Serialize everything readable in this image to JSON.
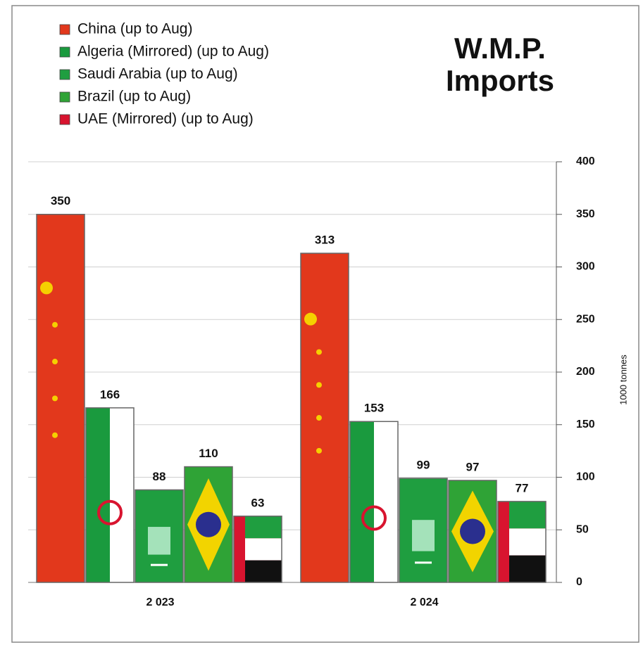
{
  "chart_data": {
    "type": "bar",
    "title_lines": [
      "W.M.P.",
      "Imports"
    ],
    "y_axis_label": "1000 tonnes",
    "categories": [
      "2 023",
      "2 024"
    ],
    "series": [
      {
        "name": "China (up to Aug)",
        "color": "#e2381c",
        "values": [
          350,
          313
        ]
      },
      {
        "name": "Algeria (Mirrored) (up to Aug)",
        "color": "#1a9a3e",
        "values": [
          166,
          153
        ]
      },
      {
        "name": "Saudi Arabia (up to Aug)",
        "color": "#1f9e40",
        "values": [
          88,
          99
        ]
      },
      {
        "name": "Brazil (up to Aug)",
        "color": "#2fa336",
        "values": [
          110,
          97
        ]
      },
      {
        "name": "UAE (Mirrored) (up to Aug)",
        "color": "#d8142f",
        "values": [
          63,
          77
        ]
      }
    ],
    "ylim": [
      0,
      400
    ],
    "yticks": [
      0,
      50,
      100,
      150,
      200,
      250,
      300,
      350,
      400
    ],
    "grid": true,
    "legend": "top-left"
  }
}
